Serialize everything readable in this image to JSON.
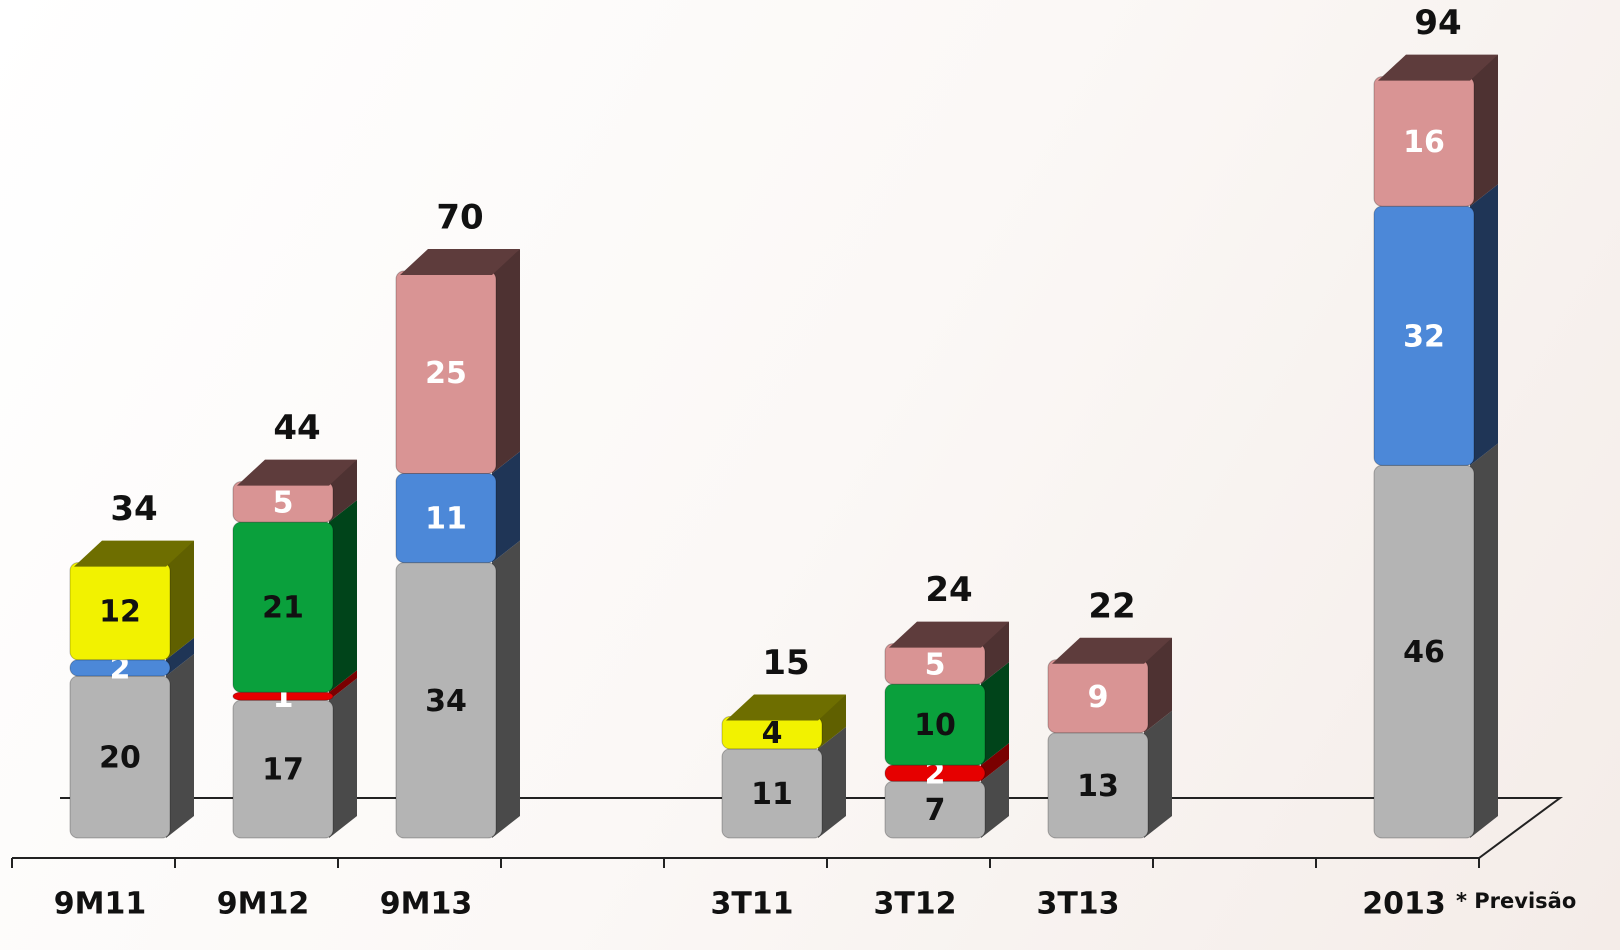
{
  "chart_data": {
    "type": "bar",
    "stacked": true,
    "categories": [
      "9M11",
      "9M12",
      "9M13",
      null,
      "3T11",
      "3T12",
      "3T13",
      null,
      "2013"
    ],
    "series": [
      {
        "color": "#b4b4b4",
        "side": "#4a4a4a",
        "top": "#8c8c8c",
        "label_color": "#111111",
        "values": [
          20,
          17,
          34,
          null,
          11,
          7,
          13,
          null,
          46
        ]
      },
      {
        "color": "#e60000",
        "side": "#7a0000",
        "top": "#a00000",
        "label_color": "#ffffff",
        "values": [
          null,
          1,
          null,
          null,
          null,
          2,
          null,
          null,
          null
        ]
      },
      {
        "color": "#4c88d8",
        "side": "#1f3556",
        "top": "#2e5a94",
        "label_color": "#ffffff",
        "values": [
          2,
          null,
          11,
          null,
          null,
          null,
          null,
          null,
          32
        ]
      },
      {
        "color": "#f2f200",
        "side": "#606000",
        "top": "#6e6e00",
        "label_color": "#111111",
        "values": [
          12,
          null,
          null,
          null,
          4,
          null,
          null,
          null,
          null
        ]
      },
      {
        "color": "#0aa03c",
        "side": "#00441a",
        "top": "#006a28",
        "label_color": "#111111",
        "values": [
          null,
          21,
          null,
          null,
          null,
          10,
          null,
          null,
          null
        ]
      },
      {
        "color": "#d99494",
        "side": "#4e3232",
        "top": "#5e3c3c",
        "label_color": "#ffffff",
        "values": [
          null,
          5,
          25,
          null,
          null,
          5,
          9,
          null,
          16
        ]
      }
    ],
    "totals": [
      34,
      44,
      70,
      null,
      15,
      24,
      22,
      null,
      94
    ],
    "annotation": "* Previsão",
    "ylim": [
      0,
      100
    ]
  }
}
